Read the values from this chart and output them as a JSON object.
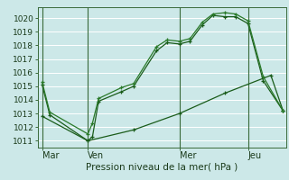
{
  "background_color": "#cce8e8",
  "plot_bg_color": "#cce8e8",
  "grid_color": "#b0d8d8",
  "line_color1": "#1a5c1a",
  "line_color2": "#2a7a2a",
  "line_color3": "#1a5c1a",
  "xlabel": "Pression niveau de la mer( hPa )",
  "xtick_labels": [
    "Mar",
    "Ven",
    "Mer",
    "Jeu"
  ],
  "xtick_positions": [
    0,
    30,
    90,
    135
  ],
  "ylim": [
    1010.5,
    1020.8
  ],
  "yticks": [
    1011,
    1012,
    1013,
    1014,
    1015,
    1016,
    1017,
    1018,
    1019,
    1020
  ],
  "xlim": [
    -3,
    160
  ],
  "series1_x": [
    0,
    5,
    30,
    33,
    37,
    52,
    60,
    75,
    82,
    90,
    97,
    105,
    112,
    120,
    127,
    135,
    145,
    158
  ],
  "series1_y": [
    1015.1,
    1012.9,
    1011.0,
    1011.3,
    1013.9,
    1014.6,
    1015.0,
    1017.6,
    1018.2,
    1018.1,
    1018.3,
    1019.5,
    1020.2,
    1020.1,
    1020.1,
    1019.6,
    1015.4,
    1013.2
  ],
  "series2_x": [
    0,
    5,
    30,
    33,
    37,
    52,
    60,
    75,
    82,
    90,
    97,
    105,
    112,
    120,
    127,
    135,
    145,
    158
  ],
  "series2_y": [
    1015.3,
    1013.1,
    1011.5,
    1012.3,
    1014.1,
    1014.9,
    1015.2,
    1017.9,
    1018.4,
    1018.3,
    1018.5,
    1019.7,
    1020.3,
    1020.4,
    1020.3,
    1019.8,
    1015.7,
    1013.2
  ],
  "series3_x": [
    0,
    30,
    60,
    90,
    120,
    150,
    158
  ],
  "series3_y": [
    1012.8,
    1011.0,
    1011.8,
    1013.0,
    1014.5,
    1015.8,
    1013.2
  ],
  "vline_positions": [
    0,
    30,
    90,
    135
  ],
  "marker_size": 3.5,
  "linewidth": 0.9,
  "xlabel_fontsize": 7.5,
  "ytick_fontsize": 6.5,
  "xtick_fontsize": 7.0
}
